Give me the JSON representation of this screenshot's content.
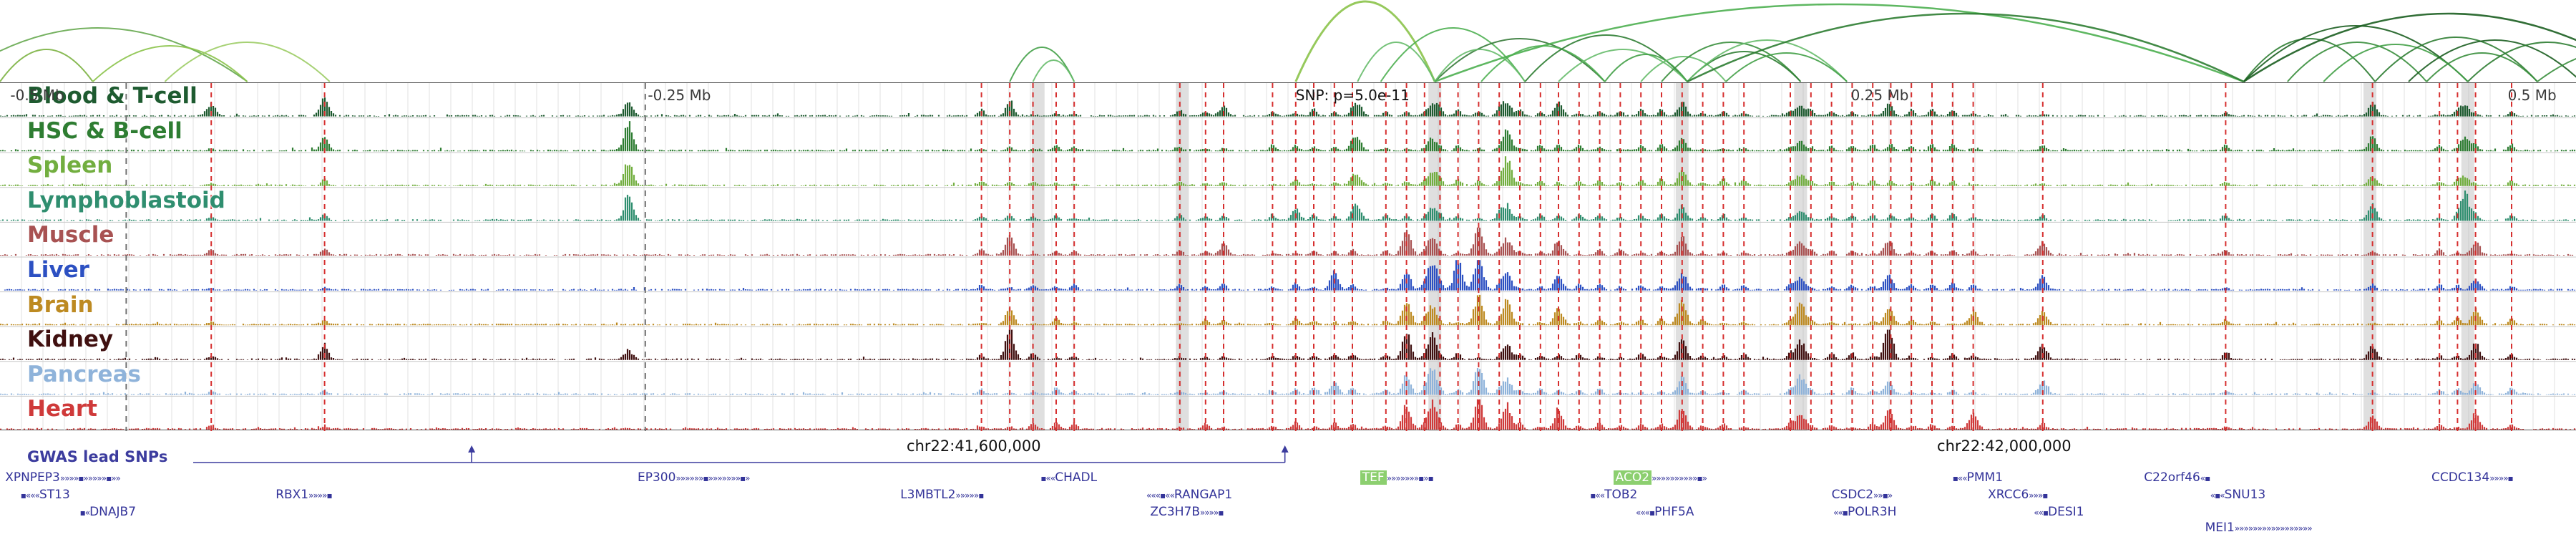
{
  "snp_annotation": {
    "text": "SNP: p=5.0e-11",
    "x": 0.503
  },
  "axis_labels": [
    {
      "text": "-0.5 Mb",
      "x": 0.004
    },
    {
      "text": "-0.25 Mb",
      "x": 0.2515
    },
    {
      "text": "0.25 Mb",
      "x": 0.7185
    },
    {
      "text": "0.5 Mb",
      "x": 0.9735
    }
  ],
  "ruler": {
    "left": {
      "text": "chr22:41,600,000",
      "x": 0.378
    },
    "right": {
      "text": "chr22:42,000,000",
      "x": 0.778
    }
  },
  "gwas": {
    "label": "GWAS lead SNPs",
    "color": "#3c3c9e",
    "line": [
      0.075,
      0.4988
    ],
    "markers": [
      0.1831,
      0.4988
    ]
  },
  "chart_data": {
    "type": "genome-browser-tracks",
    "region_span_mb": [
      -0.5,
      0.5
    ],
    "chromosome": "chr22",
    "tracks": [
      {
        "name": "Blood & T-cell",
        "color": "#1e5b30",
        "peaks": [
          [
            0.082,
            0.35
          ],
          [
            0.126,
            0.45
          ],
          [
            0.244,
            0.5
          ],
          [
            0.392,
            0.3
          ],
          [
            0.475,
            0.25
          ],
          [
            0.527,
            0.4
          ],
          [
            0.556,
            0.45
          ],
          [
            0.585,
            0.5
          ],
          [
            0.605,
            0.3
          ],
          [
            0.653,
            0.35
          ],
          [
            0.699,
            0.35
          ],
          [
            0.733,
            0.3
          ],
          [
            0.921,
            0.3
          ],
          [
            0.957,
            0.35
          ]
        ]
      },
      {
        "name": "HSC & B-cell",
        "color": "#2e7d32",
        "peaks": [
          [
            0.126,
            0.3
          ],
          [
            0.244,
            0.9
          ],
          [
            0.527,
            0.35
          ],
          [
            0.556,
            0.4
          ],
          [
            0.585,
            0.75
          ],
          [
            0.653,
            0.3
          ],
          [
            0.699,
            0.3
          ],
          [
            0.921,
            0.3
          ],
          [
            0.957,
            0.45
          ]
        ]
      },
      {
        "name": "Spleen",
        "color": "#72ae3f",
        "peaks": [
          [
            0.244,
            0.8
          ],
          [
            0.527,
            0.3
          ],
          [
            0.556,
            0.45
          ],
          [
            0.585,
            0.95
          ],
          [
            0.653,
            0.4
          ],
          [
            0.699,
            0.4
          ],
          [
            0.921,
            0.25
          ],
          [
            0.957,
            0.3
          ]
        ]
      },
      {
        "name": "Lymphoblastoid",
        "color": "#2f8e6f",
        "peaks": [
          [
            0.244,
            0.85
          ],
          [
            0.503,
            0.3
          ],
          [
            0.527,
            0.45
          ],
          [
            0.556,
            0.4
          ],
          [
            0.585,
            0.5
          ],
          [
            0.653,
            0.35
          ],
          [
            0.699,
            0.35
          ],
          [
            0.921,
            0.4
          ],
          [
            0.957,
            0.9
          ]
        ]
      },
      {
        "name": "Muscle",
        "color": "#a85252",
        "peaks": [
          [
            0.392,
            0.5
          ],
          [
            0.475,
            0.3
          ],
          [
            0.546,
            0.75
          ],
          [
            0.556,
            0.6
          ],
          [
            0.574,
            0.85
          ],
          [
            0.585,
            0.55
          ],
          [
            0.605,
            0.4
          ],
          [
            0.653,
            0.45
          ],
          [
            0.699,
            0.5
          ],
          [
            0.733,
            0.45
          ],
          [
            0.793,
            0.3
          ],
          [
            0.961,
            0.4
          ]
        ]
      },
      {
        "name": "Liver",
        "color": "#2c50c2",
        "peaks": [
          [
            0.518,
            0.45
          ],
          [
            0.546,
            0.5
          ],
          [
            0.556,
            0.9
          ],
          [
            0.566,
            0.8
          ],
          [
            0.574,
            0.95
          ],
          [
            0.585,
            0.6
          ],
          [
            0.605,
            0.4
          ],
          [
            0.653,
            0.5
          ],
          [
            0.699,
            0.45
          ],
          [
            0.733,
            0.4
          ],
          [
            0.793,
            0.35
          ],
          [
            0.961,
            0.3
          ]
        ]
      },
      {
        "name": "Brain",
        "color": "#bd8a21",
        "peaks": [
          [
            0.392,
            0.35
          ],
          [
            0.546,
            0.8
          ],
          [
            0.556,
            0.6
          ],
          [
            0.574,
            0.9
          ],
          [
            0.585,
            0.85
          ],
          [
            0.605,
            0.5
          ],
          [
            0.653,
            0.8
          ],
          [
            0.699,
            0.75
          ],
          [
            0.733,
            0.5
          ],
          [
            0.766,
            0.4
          ],
          [
            0.793,
            0.35
          ],
          [
            0.961,
            0.35
          ]
        ]
      },
      {
        "name": "Kidney",
        "color": "#401010",
        "peaks": [
          [
            0.126,
            0.3
          ],
          [
            0.244,
            0.3
          ],
          [
            0.392,
            0.95
          ],
          [
            0.546,
            0.85
          ],
          [
            0.556,
            0.8
          ],
          [
            0.585,
            0.5
          ],
          [
            0.653,
            0.55
          ],
          [
            0.699,
            0.6
          ],
          [
            0.733,
            0.95
          ],
          [
            0.793,
            0.4
          ],
          [
            0.921,
            0.35
          ],
          [
            0.961,
            0.4
          ]
        ]
      },
      {
        "name": "Pancreas",
        "color": "#8fb3da",
        "peaks": [
          [
            0.518,
            0.35
          ],
          [
            0.546,
            0.45
          ],
          [
            0.556,
            0.85
          ],
          [
            0.574,
            0.8
          ],
          [
            0.585,
            0.5
          ],
          [
            0.653,
            0.4
          ],
          [
            0.699,
            0.6
          ],
          [
            0.733,
            0.35
          ],
          [
            0.793,
            0.35
          ],
          [
            0.961,
            0.3
          ]
        ]
      },
      {
        "name": "Heart",
        "color": "#cf3a3a",
        "peaks": [
          [
            0.546,
            0.7
          ],
          [
            0.556,
            0.9
          ],
          [
            0.574,
            1.0
          ],
          [
            0.585,
            0.8
          ],
          [
            0.605,
            0.5
          ],
          [
            0.653,
            0.55
          ],
          [
            0.699,
            0.55
          ],
          [
            0.733,
            0.5
          ],
          [
            0.766,
            0.4
          ],
          [
            0.921,
            0.35
          ],
          [
            0.961,
            0.45
          ]
        ]
      }
    ],
    "highlight_lines": [
      0.082,
      0.126,
      0.381,
      0.392,
      0.401,
      0.41,
      0.417,
      0.458,
      0.468,
      0.475,
      0.494,
      0.503,
      0.51,
      0.518,
      0.525,
      0.538,
      0.546,
      0.553,
      0.559,
      0.566,
      0.574,
      0.582,
      0.59,
      0.598,
      0.605,
      0.613,
      0.621,
      0.629,
      0.637,
      0.645,
      0.653,
      0.661,
      0.669,
      0.677,
      0.695,
      0.703,
      0.711,
      0.719,
      0.727,
      0.734,
      0.742,
      0.75,
      0.758,
      0.766,
      0.793,
      0.864,
      0.921,
      0.947,
      0.954,
      0.961,
      0.975
    ],
    "gray_dashed_lines": [
      0.049,
      0.2505
    ],
    "shaded_bands": [
      0.403,
      0.459,
      0.557,
      0.653,
      0.699,
      0.92,
      0.958
    ],
    "arcs": [
      [
        0.0,
        0.036,
        45,
        "#7cb342"
      ],
      [
        -0.02,
        0.096,
        75,
        "#66a84f"
      ],
      [
        0.036,
        0.096,
        50,
        "#8bc34a"
      ],
      [
        0.064,
        0.128,
        55,
        "#9ccc65"
      ],
      [
        0.392,
        0.417,
        48,
        "#43a047"
      ],
      [
        0.401,
        0.417,
        30,
        "#66bb6a"
      ],
      [
        0.503,
        0.557,
        112,
        "#8bc34a",
        3
      ],
      [
        0.527,
        0.557,
        55,
        "#66bb6a"
      ],
      [
        0.536,
        0.592,
        75,
        "#4caf50"
      ],
      [
        0.557,
        0.623,
        60,
        "#357a38"
      ],
      [
        0.557,
        0.592,
        45,
        "#66bb6a"
      ],
      [
        0.575,
        0.623,
        50,
        "#4caf50"
      ],
      [
        0.592,
        0.655,
        65,
        "#2e7d32"
      ],
      [
        0.605,
        0.655,
        45,
        "#66bb6a"
      ],
      [
        0.623,
        0.655,
        38,
        "#43a047"
      ],
      [
        0.637,
        0.67,
        35,
        "#66bb6a"
      ],
      [
        0.645,
        0.699,
        55,
        "#388e3c"
      ],
      [
        0.655,
        0.699,
        42,
        "#2e7d32"
      ],
      [
        0.655,
        0.717,
        58,
        "#66bb6a"
      ],
      [
        0.67,
        0.717,
        40,
        "#43a047"
      ],
      [
        0.557,
        0.871,
        108,
        "#4caf50",
        2.5
      ],
      [
        0.655,
        0.871,
        95,
        "#2e7d32",
        2.5
      ],
      [
        0.871,
        0.922,
        60,
        "#2e7d32"
      ],
      [
        0.871,
        0.958,
        78,
        "#1b5e20"
      ],
      [
        0.888,
        0.942,
        55,
        "#388e3c"
      ],
      [
        0.902,
        0.958,
        52,
        "#43a047"
      ],
      [
        0.922,
        0.985,
        62,
        "#2e7d32"
      ],
      [
        0.935,
        1.002,
        58,
        "#1b5e20"
      ],
      [
        0.942,
        0.985,
        40,
        "#388e3c"
      ],
      [
        0.958,
        1.02,
        55,
        "#2e7d32"
      ],
      [
        0.871,
        1.03,
        95,
        "#1b5e20",
        2.5
      ],
      [
        0.985,
        1.05,
        45,
        "#388e3c"
      ]
    ],
    "genes": [
      {
        "label": "XPNPEP3",
        "x": 0.002,
        "row": 0,
        "pre": "",
        "post": "»»»»▪»»»»»▪»»"
      },
      {
        "label": "ST13",
        "x": 0.008,
        "row": 1,
        "pre": "▪«««",
        "post": ""
      },
      {
        "label": "DNAJB7",
        "x": 0.031,
        "row": 2,
        "pre": "▪«",
        "post": ""
      },
      {
        "label": "RBX1",
        "x": 0.107,
        "row": 1,
        "pre": "",
        "post": "»»»»▪"
      },
      {
        "label": "EP300",
        "x": 0.2475,
        "row": 0,
        "pre": "",
        "post": "»»»»»»▪»»»»»»»▪»"
      },
      {
        "label": "L3MBTL2",
        "x": 0.3495,
        "row": 1,
        "pre": "",
        "post": "»»»»»▪"
      },
      {
        "label": "CHADL",
        "x": 0.404,
        "row": 0,
        "pre": "▪««",
        "post": ""
      },
      {
        "label": "RANGAP1",
        "x": 0.445,
        "row": 1,
        "pre": "«««▪««",
        "post": ""
      },
      {
        "label": "ZC3H7B",
        "x": 0.4465,
        "row": 2,
        "pre": "",
        "post": "»»»»▪"
      },
      {
        "label": "TEF",
        "x": 0.528,
        "row": 0,
        "hl": true,
        "pre": "",
        "post": "»»»»»»»▪»▪"
      },
      {
        "label": "ACO2",
        "x": 0.6263,
        "row": 0,
        "hl": true,
        "pre": "",
        "post": "»»»»»»»»»»▪»"
      },
      {
        "label": "TOB2",
        "x": 0.6173,
        "row": 1,
        "pre": "▪««",
        "post": ""
      },
      {
        "label": "PHF5A",
        "x": 0.635,
        "row": 2,
        "pre": "«««▪",
        "post": ""
      },
      {
        "label": "CSDC2",
        "x": 0.711,
        "row": 1,
        "pre": "",
        "post": "»»▪»"
      },
      {
        "label": "POLR3H",
        "x": 0.7117,
        "row": 2,
        "pre": "««▪",
        "post": ""
      },
      {
        "label": "PMM1",
        "x": 0.758,
        "row": 0,
        "pre": "▪««",
        "post": ""
      },
      {
        "label": "XRCC6",
        "x": 0.7717,
        "row": 1,
        "pre": "",
        "post": "»»»▪"
      },
      {
        "label": "DESI1",
        "x": 0.7895,
        "row": 2,
        "pre": "««▪",
        "post": ""
      },
      {
        "label": "C22orf46",
        "x": 0.8323,
        "row": 0,
        "pre": "",
        "post": "«▪"
      },
      {
        "label": "SNU13",
        "x": 0.858,
        "row": 1,
        "pre": "«▪«",
        "post": ""
      },
      {
        "label": "MEI1",
        "x": 0.856,
        "row": 3,
        "pre": "",
        "post": "»»»»»»»»»»»»»»»»»"
      },
      {
        "label": "CCDC134",
        "x": 0.9439,
        "row": 0,
        "pre": "",
        "post": "»»»»▪"
      }
    ]
  }
}
